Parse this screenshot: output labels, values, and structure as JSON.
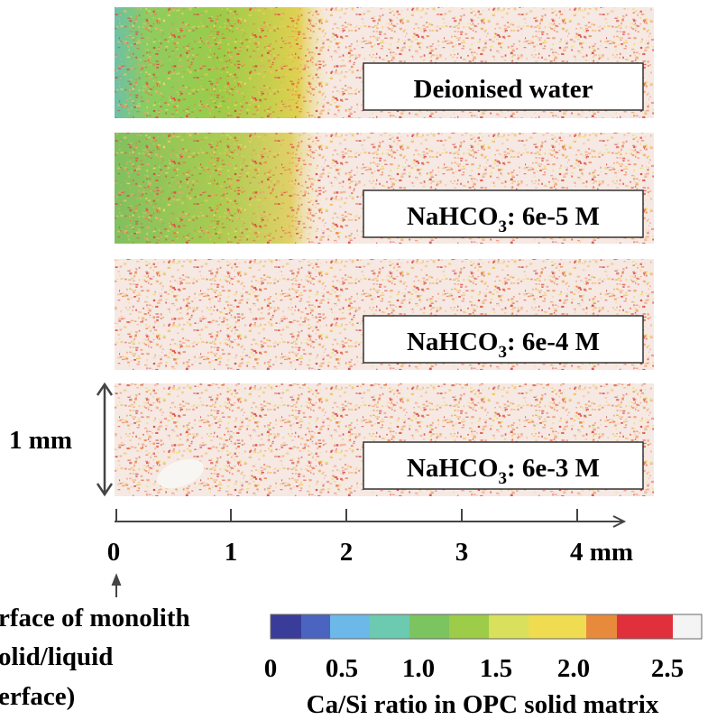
{
  "panels": [
    {
      "label": "Deionised water"
    },
    {
      "label_parts": [
        "NaHCO",
        "3",
        ": 6e-5 M"
      ]
    },
    {
      "label_parts": [
        "NaHCO",
        "3",
        ": 6e-4 M"
      ]
    },
    {
      "label_parts": [
        "NaHCO",
        "3",
        ": 6e-3 M"
      ]
    }
  ],
  "scale_bar": "1 mm",
  "distance_axis": {
    "ticks": [
      "0",
      "1",
      "2",
      "3",
      "4 mm"
    ]
  },
  "annotation": [
    "rface of monolith",
    "olid/liquid",
    "erface)"
  ],
  "colorbar": {
    "ticks": [
      "0",
      "0.5",
      "1.0",
      "1.5",
      "2.0",
      "2.5"
    ],
    "title": "Ca/Si ratio in OPC solid matrix"
  }
}
